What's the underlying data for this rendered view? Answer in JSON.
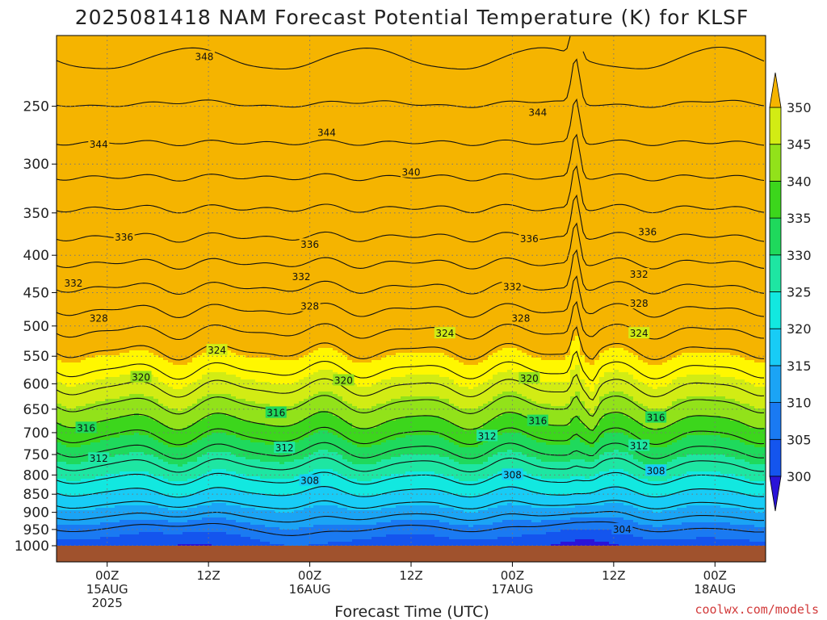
{
  "chart_data": {
    "type": "heatmap",
    "title": "2025081418 NAM Forecast Potential Temperature (K) for KLSF",
    "xlabel": "Forecast Time (UTC)",
    "ylabel": "",
    "y_scale": "log-pressure",
    "ylim": [
      1000,
      200
    ],
    "y_ticks": [
      250,
      300,
      350,
      400,
      450,
      500,
      550,
      600,
      650,
      700,
      750,
      800,
      850,
      900,
      950,
      1000
    ],
    "x_ticks": [
      {
        "hour": 6,
        "line1": "00Z",
        "line2": "15AUG",
        "line3": "2025"
      },
      {
        "hour": 18,
        "line1": "12Z",
        "line2": "",
        "line3": ""
      },
      {
        "hour": 30,
        "line1": "00Z",
        "line2": "16AUG",
        "line3": ""
      },
      {
        "hour": 42,
        "line1": "12Z",
        "line2": "",
        "line3": ""
      },
      {
        "hour": 54,
        "line1": "00Z",
        "line2": "17AUG",
        "line3": ""
      },
      {
        "hour": 66,
        "line1": "12Z",
        "line2": "",
        "line3": ""
      },
      {
        "hour": 78,
        "line1": "00Z",
        "line2": "18AUG",
        "line3": ""
      }
    ],
    "xlim_hours": [
      0,
      84
    ],
    "colorbar": {
      "levels": [
        300,
        305,
        310,
        315,
        320,
        325,
        330,
        335,
        340,
        345,
        350
      ],
      "colors": [
        "#2a14d8",
        "#1455ee",
        "#1a7af2",
        "#1ba4f5",
        "#18ccf6",
        "#12e8e0",
        "#1ee6a2",
        "#1fd95c",
        "#3cd61c",
        "#92e21a",
        "#d2ec14",
        "#fff700",
        "#f5b400"
      ],
      "extend": "both"
    },
    "contour_interval": 2,
    "contour_levels": [
      304,
      306,
      308,
      310,
      312,
      314,
      316,
      318,
      320,
      322,
      324,
      326,
      328,
      330,
      332,
      334,
      336,
      338,
      340,
      342,
      344,
      346,
      348
    ],
    "contour_labels": [
      {
        "value": 348,
        "hour": 17.5,
        "p": 214
      },
      {
        "value": 344,
        "hour": 5.0,
        "p": 282
      },
      {
        "value": 344,
        "hour": 32.0,
        "p": 272
      },
      {
        "value": 344,
        "hour": 57.0,
        "p": 255
      },
      {
        "value": 340,
        "hour": 42.0,
        "p": 308
      },
      {
        "value": 336,
        "hour": 8.0,
        "p": 378
      },
      {
        "value": 336,
        "hour": 30.0,
        "p": 387
      },
      {
        "value": 336,
        "hour": 56.0,
        "p": 380
      },
      {
        "value": 336,
        "hour": 70.0,
        "p": 372
      },
      {
        "value": 332,
        "hour": 2.0,
        "p": 437
      },
      {
        "value": 332,
        "hour": 29.0,
        "p": 428
      },
      {
        "value": 332,
        "hour": 54.0,
        "p": 442
      },
      {
        "value": 332,
        "hour": 69.0,
        "p": 425
      },
      {
        "value": 328,
        "hour": 5.0,
        "p": 488
      },
      {
        "value": 328,
        "hour": 30.0,
        "p": 470
      },
      {
        "value": 328,
        "hour": 55.0,
        "p": 488
      },
      {
        "value": 328,
        "hour": 69.0,
        "p": 466
      },
      {
        "value": 324,
        "hour": 19.0,
        "p": 540
      },
      {
        "value": 324,
        "hour": 46.0,
        "p": 512
      },
      {
        "value": 324,
        "hour": 69.0,
        "p": 512
      },
      {
        "value": 320,
        "hour": 10.0,
        "p": 588
      },
      {
        "value": 320,
        "hour": 34.0,
        "p": 594
      },
      {
        "value": 320,
        "hour": 56.0,
        "p": 590
      },
      {
        "value": 316,
        "hour": 3.5,
        "p": 690
      },
      {
        "value": 316,
        "hour": 26.0,
        "p": 658
      },
      {
        "value": 316,
        "hour": 57.0,
        "p": 675
      },
      {
        "value": 316,
        "hour": 71.0,
        "p": 668
      },
      {
        "value": 312,
        "hour": 5.0,
        "p": 760
      },
      {
        "value": 312,
        "hour": 27.0,
        "p": 735
      },
      {
        "value": 312,
        "hour": 51.0,
        "p": 708
      },
      {
        "value": 312,
        "hour": 69.0,
        "p": 730
      },
      {
        "value": 308,
        "hour": 30.0,
        "p": 815
      },
      {
        "value": 308,
        "hour": 54.0,
        "p": 800
      },
      {
        "value": 308,
        "hour": 71.0,
        "p": 790
      },
      {
        "value": 304,
        "hour": 67.0,
        "p": 950
      }
    ]
  },
  "credit": "coolwx.com/models"
}
